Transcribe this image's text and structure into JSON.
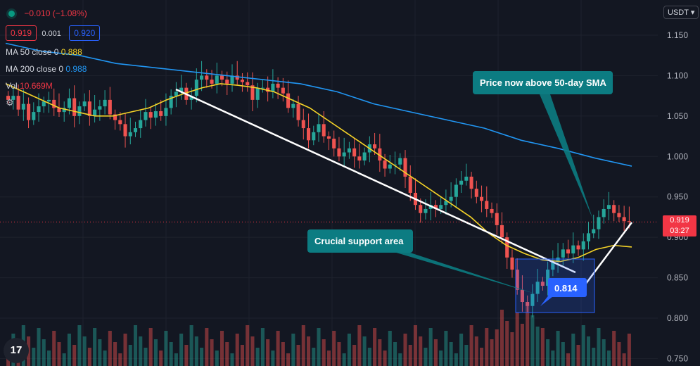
{
  "header": {
    "change_text": "−0.010 (−1.08%)",
    "bid": "0.919",
    "spread": "0.001",
    "ask": "0.920",
    "ma50_label": "MA 50 close 0",
    "ma50_value": "0.888",
    "ma200_label": "MA 200 close 0",
    "ma200_value": "0.988",
    "vol_label": "Vol",
    "vol_value": "10.669M"
  },
  "currency_selector": "USDT",
  "current_price": {
    "price": "0.919",
    "countdown": "03:27"
  },
  "logo_text": "17",
  "colors": {
    "background": "#131722",
    "up": "#26a69a",
    "down": "#ef5350",
    "ma50": "#f5d327",
    "ma200": "#2196f3",
    "callout": "#0c7c82",
    "trendline": "#ffffff",
    "price_label": "#f23645"
  },
  "chart_data": {
    "type": "candlestick",
    "yaxis": {
      "min": 0.74,
      "max": 1.175,
      "ticks": [
        "1.150",
        "1.100",
        "1.050",
        "1.000",
        "0.950",
        "0.900",
        "0.850",
        "0.800",
        "0.750"
      ],
      "tick_values": [
        1.15,
        1.1,
        1.05,
        1.0,
        0.95,
        0.9,
        0.85,
        0.8,
        0.75
      ]
    },
    "close_series": [
      1.07,
      1.075,
      1.058,
      1.065,
      1.045,
      1.055,
      1.062,
      1.068,
      1.07,
      1.06,
      1.055,
      1.06,
      1.072,
      1.05,
      1.062,
      1.068,
      1.05,
      1.058,
      1.062,
      1.07,
      1.052,
      1.045,
      1.04,
      1.025,
      1.03,
      1.035,
      1.045,
      1.055,
      1.048,
      1.056,
      1.05,
      1.06,
      1.075,
      1.08,
      1.085,
      1.07,
      1.075,
      1.095,
      1.1,
      1.095,
      1.09,
      1.1,
      1.095,
      1.09,
      1.1,
      1.095,
      1.092,
      1.088,
      1.07,
      1.085,
      1.085,
      1.08,
      1.09,
      1.085,
      1.078,
      1.06,
      1.065,
      1.045,
      1.035,
      1.02,
      1.03,
      1.04,
      1.025,
      1.022,
      1.01,
      1.0,
      1.005,
      1.01,
      1.0,
      0.995,
      1.005,
      1.015,
      1.01,
      0.995,
      0.985,
      0.99,
      0.99,
      0.998,
      0.975,
      0.955,
      0.94,
      0.93,
      0.935,
      0.94,
      0.935,
      0.94,
      0.945,
      0.95,
      0.965,
      0.97,
      0.975,
      0.96,
      0.95,
      0.945,
      0.935,
      0.93,
      0.915,
      0.9,
      0.875,
      0.86,
      0.835,
      0.82,
      0.815,
      0.83,
      0.845,
      0.84,
      0.86,
      0.87,
      0.875,
      0.885,
      0.88,
      0.89,
      0.885,
      0.895,
      0.905,
      0.91,
      0.925,
      0.935,
      0.94,
      0.93,
      0.925,
      0.92,
      0.919
    ],
    "ma50_series": [
      1.09,
      1.08,
      1.07,
      1.06,
      1.055,
      1.05,
      1.05,
      1.055,
      1.06,
      1.07,
      1.078,
      1.085,
      1.09,
      1.088,
      1.085,
      1.08,
      1.07,
      1.06,
      1.045,
      1.03,
      1.015,
      1.0,
      0.985,
      0.97,
      0.955,
      0.94,
      0.925,
      0.905,
      0.89,
      0.88,
      0.872,
      0.87,
      0.875,
      0.885,
      0.89,
      0.888
    ],
    "ma200_series": [
      1.14,
      1.13,
      1.125,
      1.115,
      1.11,
      1.105,
      1.1,
      1.095,
      1.09,
      1.08,
      1.065,
      1.055,
      1.045,
      1.035,
      1.02,
      1.01,
      0.998,
      0.988
    ],
    "annotations": [
      {
        "text": "Price now above 50-day SMA"
      },
      {
        "text": "Crucial support area"
      },
      {
        "text": "0.814",
        "value": 0.814
      }
    ],
    "legend": "top-left",
    "grid": true
  }
}
